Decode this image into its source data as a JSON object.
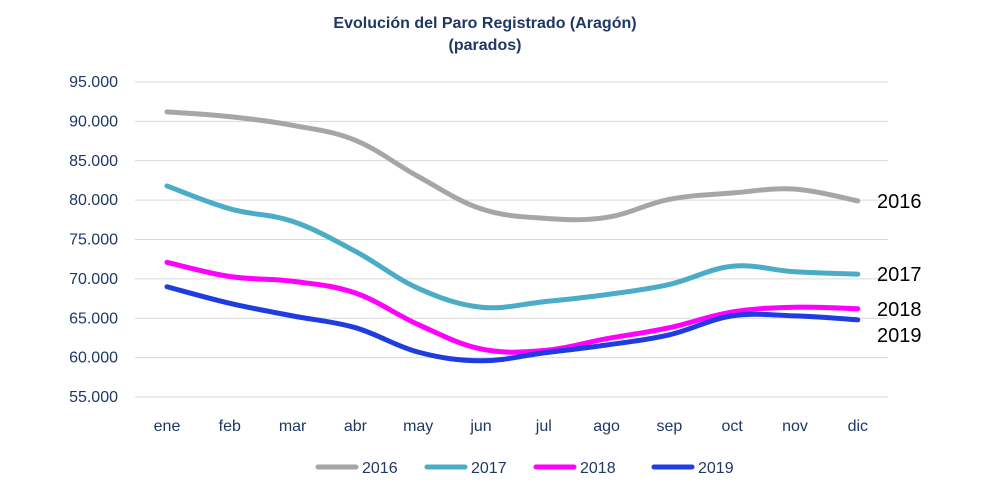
{
  "chart_data": {
    "type": "line",
    "title": "Evolución del Paro Registrado (Aragón)",
    "subtitle": "(parados)",
    "xlabel": "",
    "ylabel": "",
    "categories": [
      "ene",
      "feb",
      "mar",
      "abr",
      "may",
      "jun",
      "jul",
      "ago",
      "sep",
      "oct",
      "nov",
      "dic"
    ],
    "ylim": [
      55000,
      95000
    ],
    "yticks": [
      55000,
      60000,
      65000,
      70000,
      75000,
      80000,
      85000,
      90000,
      95000
    ],
    "ytick_labels": [
      "55.000",
      "60.000",
      "65.000",
      "70.000",
      "75.000",
      "80.000",
      "85.000",
      "90.000",
      "95.000"
    ],
    "grid": true,
    "legend_position": "bottom",
    "series": [
      {
        "name": "2016",
        "end_label": "2016",
        "color": "#a6a6a6",
        "values": [
          91200,
          90600,
          89500,
          87600,
          83000,
          78900,
          77700,
          77800,
          80100,
          80900,
          81400,
          79900
        ]
      },
      {
        "name": "2017",
        "end_label": "2017",
        "color": "#4bacc6",
        "values": [
          81800,
          78900,
          77300,
          73500,
          68800,
          66400,
          67100,
          68000,
          69300,
          71600,
          70900,
          70600
        ]
      },
      {
        "name": "2018",
        "end_label": "2018",
        "color": "#ff00ff",
        "values": [
          72100,
          70300,
          69700,
          68200,
          64200,
          61100,
          60900,
          62400,
          63800,
          65800,
          66400,
          66200
        ]
      },
      {
        "name": "2019",
        "end_label": "2019",
        "color": "#1f3ce0",
        "values": [
          69000,
          66900,
          65300,
          63800,
          60700,
          59600,
          60600,
          61600,
          62900,
          65300,
          65300,
          64800
        ]
      }
    ]
  }
}
